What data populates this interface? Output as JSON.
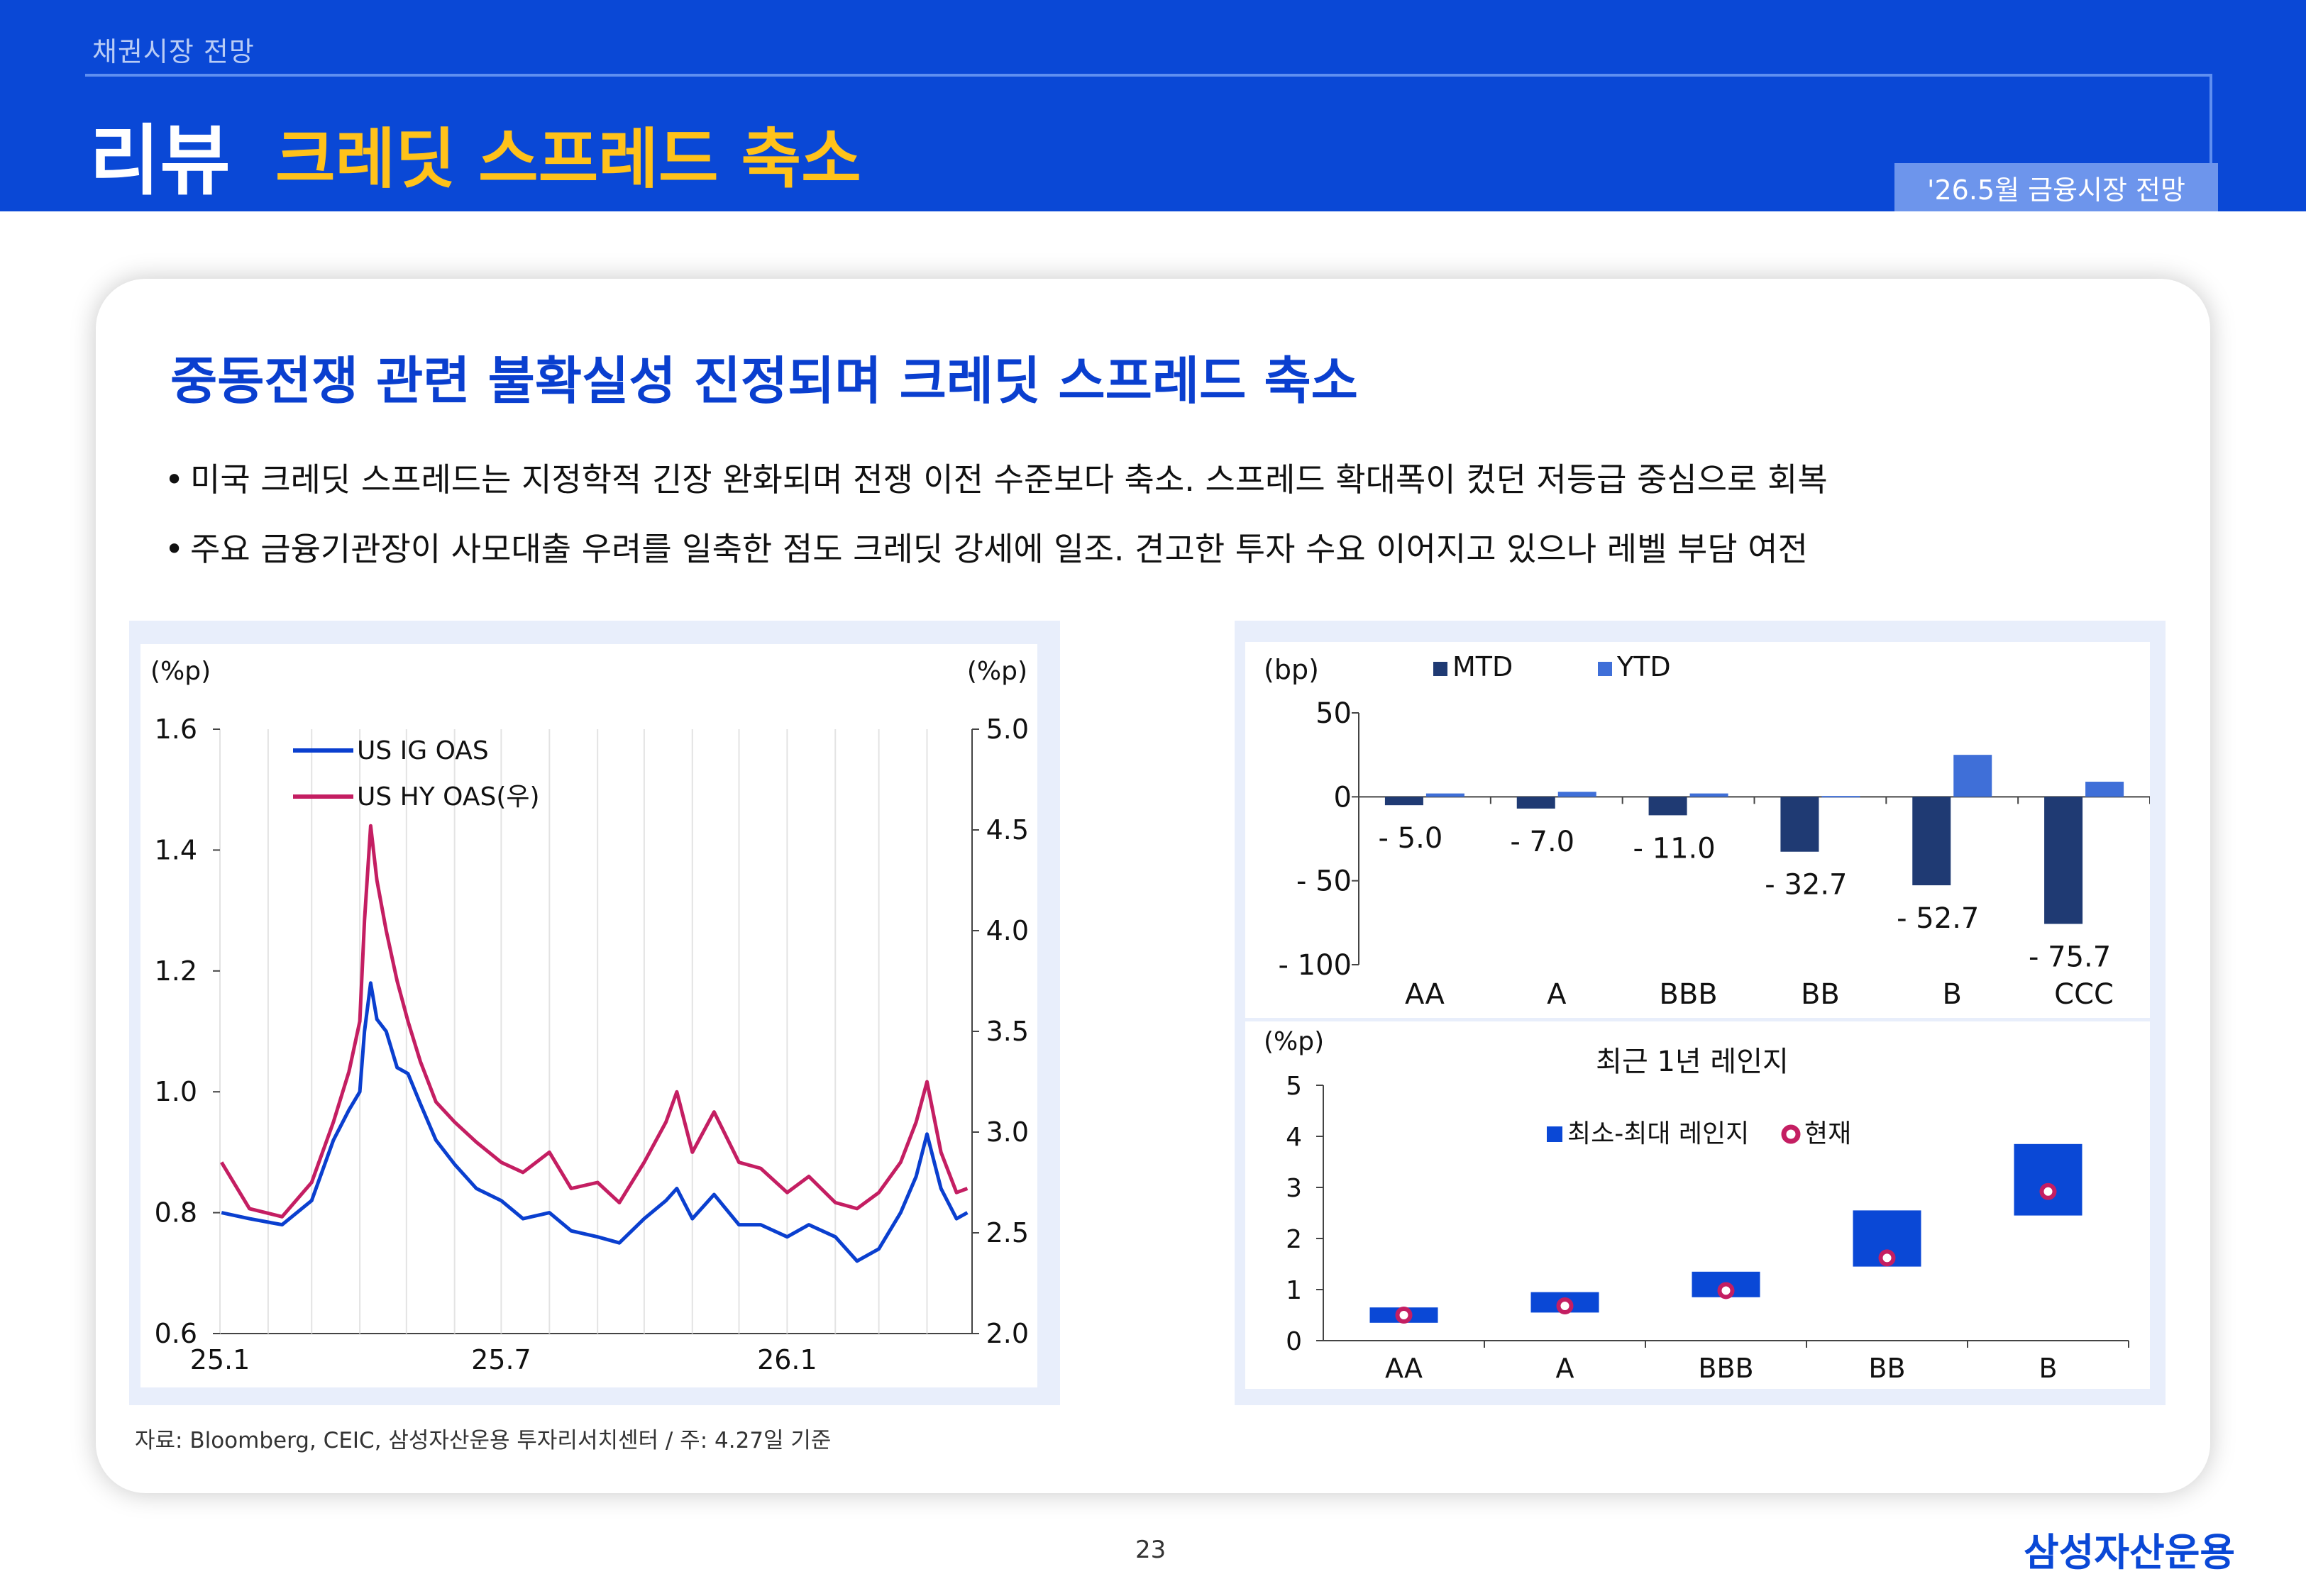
{
  "header": {
    "section": "채권시장 전망",
    "title_main": "리뷰",
    "title_sub": "크레딧 스프레드 축소",
    "date_badge": "'26.5월 금융시장 전망"
  },
  "content": {
    "headline": "중동전쟁 관련 불확실성 진정되며 크레딧 스프레드 축소",
    "bullets": [
      "미국 크레딧 스프레드는 지정학적 긴장 완화되며 전쟁 이전 수준보다 축소. 스프레드 확대폭이 컸던 저등급 중심으로 회복",
      "주요 금융기관장이 사모대출 우려를 일축한 점도 크레딧 강세에 일조. 견고한 투자 수요 이어지고 있으나 레벨 부담 여전"
    ]
  },
  "chart_data": [
    {
      "type": "line",
      "left_unit": "(%p)",
      "right_unit": "(%p)",
      "x_ticks": [
        "25.1",
        "25.7",
        "26.1"
      ],
      "y_left_ticks": [
        "0.6",
        "0.8",
        "1.0",
        "1.2",
        "1.4",
        "1.6"
      ],
      "y_right_ticks": [
        "2.0",
        "2.5",
        "3.0",
        "3.5",
        "4.0",
        "4.5",
        "5.0"
      ],
      "ylim_left": [
        0.6,
        1.6
      ],
      "ylim_right": [
        2.0,
        5.0
      ],
      "series": [
        {
          "name": "US IG OAS",
          "axis": "left",
          "color": "#0a3fcf",
          "x": [
            "2025-01-02",
            "2025-01-20",
            "2025-02-10",
            "2025-03-01",
            "2025-03-15",
            "2025-03-25",
            "2025-04-01",
            "2025-04-04",
            "2025-04-08",
            "2025-04-12",
            "2025-04-18",
            "2025-04-25",
            "2025-05-02",
            "2025-05-10",
            "2025-05-20",
            "2025-06-01",
            "2025-06-15",
            "2025-07-01",
            "2025-07-15",
            "2025-08-01",
            "2025-08-15",
            "2025-09-01",
            "2025-09-15",
            "2025-10-01",
            "2025-10-15",
            "2025-10-22",
            "2025-11-01",
            "2025-11-15",
            "2025-12-01",
            "2025-12-15",
            "2026-01-01",
            "2026-01-15",
            "2026-02-01",
            "2026-02-15",
            "2026-03-01",
            "2026-03-15",
            "2026-03-25",
            "2026-04-01",
            "2026-04-10",
            "2026-04-20",
            "2026-04-27"
          ],
          "values": [
            0.8,
            0.79,
            0.78,
            0.82,
            0.92,
            0.97,
            1.0,
            1.1,
            1.18,
            1.12,
            1.1,
            1.04,
            1.03,
            0.98,
            0.92,
            0.88,
            0.84,
            0.82,
            0.79,
            0.8,
            0.77,
            0.76,
            0.75,
            0.79,
            0.82,
            0.84,
            0.79,
            0.83,
            0.78,
            0.78,
            0.76,
            0.78,
            0.76,
            0.72,
            0.74,
            0.8,
            0.86,
            0.93,
            0.84,
            0.79,
            0.8
          ]
        },
        {
          "name": "US HY OAS(우)",
          "axis": "right",
          "color": "#c41e62",
          "x": [
            "2025-01-02",
            "2025-01-20",
            "2025-02-10",
            "2025-03-01",
            "2025-03-15",
            "2025-03-25",
            "2025-04-01",
            "2025-04-04",
            "2025-04-08",
            "2025-04-12",
            "2025-04-18",
            "2025-04-25",
            "2025-05-02",
            "2025-05-10",
            "2025-05-20",
            "2025-06-01",
            "2025-06-15",
            "2025-07-01",
            "2025-07-15",
            "2025-08-01",
            "2025-08-15",
            "2025-09-01",
            "2025-09-15",
            "2025-10-01",
            "2025-10-15",
            "2025-10-22",
            "2025-11-01",
            "2025-11-15",
            "2025-12-01",
            "2025-12-15",
            "2026-01-01",
            "2026-01-15",
            "2026-02-01",
            "2026-02-15",
            "2026-03-01",
            "2026-03-15",
            "2026-03-25",
            "2026-04-01",
            "2026-04-10",
            "2026-04-20",
            "2026-04-27"
          ],
          "values": [
            2.85,
            2.62,
            2.58,
            2.75,
            3.05,
            3.3,
            3.55,
            4.05,
            4.52,
            4.25,
            4.0,
            3.75,
            3.55,
            3.35,
            3.15,
            3.05,
            2.95,
            2.85,
            2.8,
            2.9,
            2.72,
            2.75,
            2.65,
            2.85,
            3.05,
            3.2,
            2.9,
            3.1,
            2.85,
            2.82,
            2.7,
            2.78,
            2.65,
            2.62,
            2.7,
            2.85,
            3.05,
            3.25,
            2.9,
            2.7,
            2.72
          ]
        }
      ]
    },
    {
      "type": "bar",
      "unit": "(bp)",
      "categories": [
        "AA",
        "A",
        "BBB",
        "BB",
        "B",
        "CCC"
      ],
      "ylim": [
        -100,
        50
      ],
      "y_ticks": [
        "50",
        "0",
        "-50",
        "-100"
      ],
      "series": [
        {
          "name": "MTD",
          "color": "#1f3a73",
          "values": [
            -5.0,
            -7.0,
            -11.0,
            -32.7,
            -52.7,
            -75.7
          ],
          "labels": [
            "-5.0",
            "-7.0",
            "-11.0",
            "-32.7",
            "-52.7",
            "-75.7"
          ]
        },
        {
          "name": "YTD",
          "color": "#3f6fd8",
          "values": [
            2,
            3,
            2,
            0.5,
            25,
            9
          ]
        }
      ]
    },
    {
      "type": "bar",
      "subtype": "range",
      "unit": "(%p)",
      "title": "최근 1년 레인지",
      "categories": [
        "AA",
        "A",
        "BBB",
        "BB",
        "B"
      ],
      "ylim": [
        0,
        5
      ],
      "y_ticks": [
        "0",
        "1",
        "2",
        "3",
        "4",
        "5"
      ],
      "legend": [
        "최소-최대 레인지",
        "현재"
      ],
      "range_color": "#0a48d6",
      "current_color": "#c41e62",
      "ranges": [
        [
          0.35,
          0.65
        ],
        [
          0.55,
          0.95
        ],
        [
          0.85,
          1.35
        ],
        [
          1.45,
          2.55
        ],
        [
          2.45,
          3.85
        ]
      ],
      "current": [
        0.5,
        0.68,
        0.98,
        1.62,
        2.92
      ]
    }
  ],
  "footer": {
    "source": "자료: Bloomberg, CEIC, 삼성자산운용 투자리서치센터 / 주: 4.27일 기준",
    "page": "23",
    "logo": "삼성자산운용"
  }
}
